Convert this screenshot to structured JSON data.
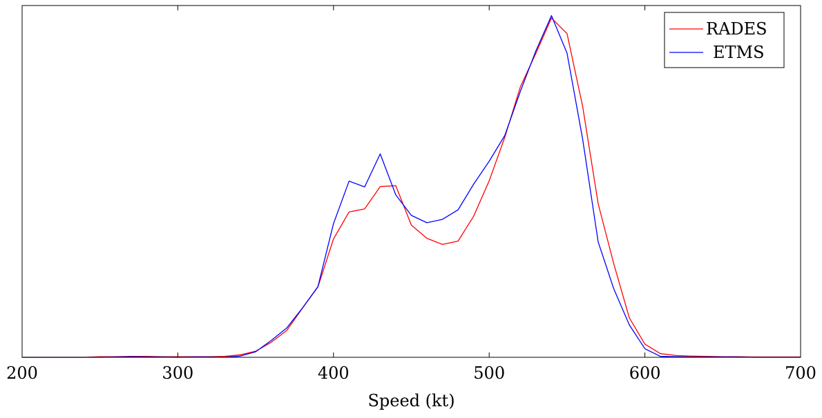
{
  "chart_data": {
    "type": "line",
    "title": "",
    "xlabel": "Speed (kt)",
    "ylabel": "",
    "xlim": [
      200,
      700
    ],
    "ylim": [
      0,
      1.15
    ],
    "xticks": [
      200,
      300,
      400,
      500,
      600,
      700
    ],
    "grid": false,
    "legend_position": "top-right",
    "series": [
      {
        "name": "RADES",
        "color": "#ff0000",
        "x": [
          200,
          210,
          220,
          230,
          240,
          250,
          260,
          270,
          280,
          290,
          300,
          310,
          320,
          330,
          340,
          350,
          360,
          370,
          380,
          390,
          400,
          410,
          420,
          430,
          440,
          450,
          460,
          470,
          480,
          490,
          500,
          510,
          520,
          530,
          540,
          550,
          560,
          570,
          580,
          590,
          600,
          610,
          620,
          630,
          640,
          650,
          660,
          670,
          680,
          690,
          700
        ],
        "y": [
          0.0,
          0.0,
          0.0,
          0.0,
          0.0,
          0.002,
          0.002,
          0.003,
          0.003,
          0.002,
          0.002,
          0.002,
          0.002,
          0.003,
          0.008,
          0.02,
          0.049,
          0.088,
          0.16,
          0.23,
          0.387,
          0.475,
          0.485,
          0.558,
          0.561,
          0.432,
          0.389,
          0.369,
          0.38,
          0.461,
          0.577,
          0.719,
          0.884,
          0.994,
          1.109,
          1.058,
          0.821,
          0.502,
          0.306,
          0.129,
          0.043,
          0.012,
          0.006,
          0.004,
          0.003,
          0.002,
          0.002,
          0.001,
          0.001,
          0.001,
          0.001
        ]
      },
      {
        "name": "ETMS",
        "color": "#0000ff",
        "x": [
          200,
          210,
          220,
          230,
          240,
          250,
          260,
          270,
          280,
          290,
          300,
          310,
          320,
          330,
          340,
          350,
          360,
          370,
          380,
          390,
          400,
          410,
          420,
          430,
          440,
          450,
          460,
          470,
          480,
          490,
          500,
          510,
          520,
          530,
          540,
          550,
          560,
          570,
          580,
          590,
          600,
          610,
          620,
          630,
          640,
          650,
          660,
          670,
          680,
          690,
          700
        ],
        "y": [
          0.0,
          0.0,
          0.0,
          0.0,
          0.0,
          0.0,
          0.001,
          0.002,
          0.001,
          0.001,
          0.0,
          0.001,
          0.001,
          0.0,
          0.004,
          0.018,
          0.055,
          0.096,
          0.161,
          0.231,
          0.437,
          0.576,
          0.557,
          0.665,
          0.531,
          0.464,
          0.44,
          0.451,
          0.482,
          0.566,
          0.641,
          0.725,
          0.869,
          1.002,
          1.117,
          0.994,
          0.714,
          0.377,
          0.224,
          0.106,
          0.028,
          0.003,
          0.002,
          0.001,
          0.001,
          0.001,
          0.001,
          0.0,
          0.0,
          0.0,
          0.0
        ]
      }
    ]
  }
}
